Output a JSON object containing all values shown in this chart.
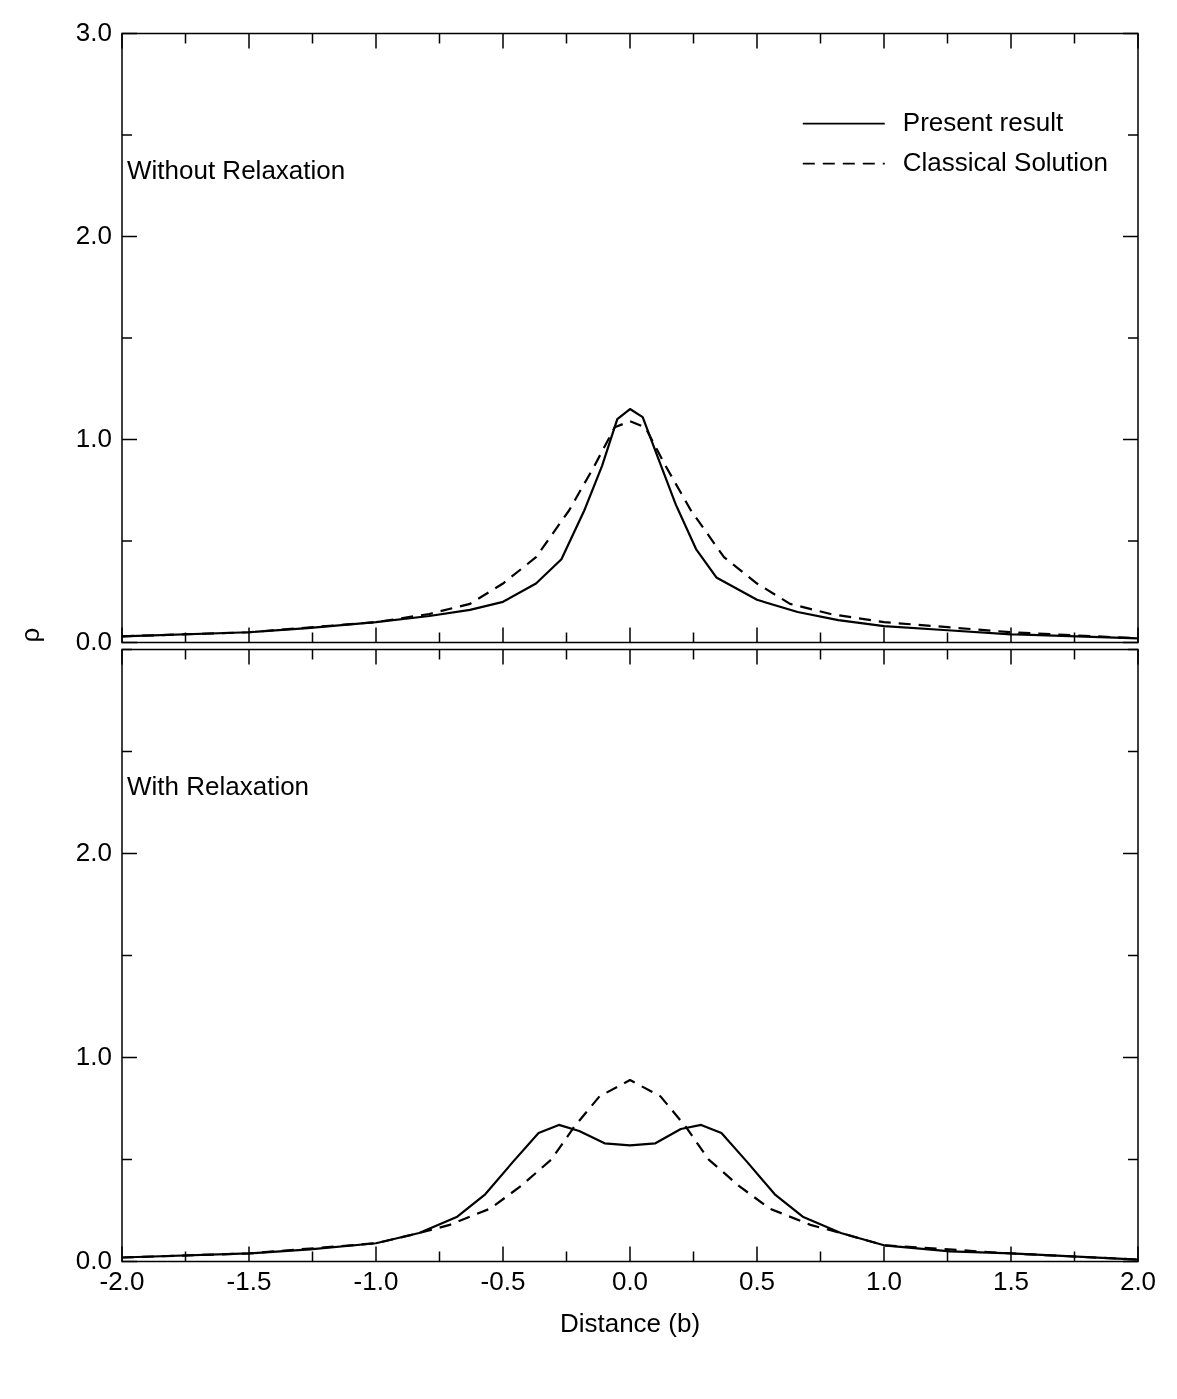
{
  "chart_data": [
    {
      "type": "line",
      "ylabel": "ρ",
      "annotations": [
        "Without Relaxation"
      ],
      "legend": "top right",
      "grid": false,
      "tick_labels": "y",
      "xlim": [
        -2,
        2
      ],
      "xticks": [
        -2,
        {
          "value": -1.75,
          "label": null
        },
        -1.5,
        {
          "value": -1.25,
          "label": null
        },
        -1,
        {
          "value": -0.75,
          "label": null
        },
        -0.5,
        {
          "value": -0.25,
          "label": null
        },
        0,
        {
          "value": 0.25,
          "label": null
        },
        0.5,
        {
          "value": 0.75,
          "label": null
        },
        1,
        {
          "value": 1.25,
          "label": null
        },
        1.5,
        {
          "value": 1.75,
          "label": null
        },
        2
      ],
      "ylim": [
        0,
        3
      ],
      "yticks": [
        {
          "value": 0,
          "label": "0.0"
        },
        {
          "value": 0.5,
          "label": null
        },
        {
          "value": 1,
          "label": "1.0"
        },
        {
          "value": 1.5,
          "label": null
        },
        {
          "value": 2,
          "label": "2.0"
        },
        {
          "value": 2.5,
          "label": null
        },
        {
          "value": 3,
          "label": "3.0"
        }
      ],
      "series": [
        {
          "name": "Present result",
          "color": "#000000",
          "line_style": "solid",
          "x": [
            -2.0,
            -1.5,
            -1.27,
            -1.0,
            -0.79,
            -0.63,
            -0.5,
            -0.37,
            -0.27,
            -0.18,
            -0.11,
            -0.05,
            0,
            0.05,
            0.11,
            0.18,
            0.26,
            0.34,
            0.5,
            0.66,
            0.82,
            1.0,
            1.25,
            1.5,
            2.0
          ],
          "values": [
            0.03,
            0.05,
            0.07,
            0.1,
            0.13,
            0.16,
            0.2,
            0.29,
            0.41,
            0.65,
            0.87,
            1.1,
            1.15,
            1.11,
            0.91,
            0.68,
            0.46,
            0.32,
            0.21,
            0.15,
            0.11,
            0.08,
            0.06,
            0.04,
            0.02
          ]
        },
        {
          "name": "Classical Solution",
          "color": "#000000",
          "line_style": "dashed",
          "x": [
            -2.0,
            -1.5,
            -1.0,
            -0.79,
            -0.63,
            -0.5,
            -0.37,
            -0.24,
            -0.14,
            -0.06,
            0,
            0.06,
            0.14,
            0.24,
            0.37,
            0.5,
            0.63,
            0.79,
            1.0,
            1.5,
            2.0
          ],
          "values": [
            0.03,
            0.05,
            0.1,
            0.14,
            0.19,
            0.29,
            0.42,
            0.65,
            0.87,
            1.06,
            1.09,
            1.06,
            0.87,
            0.65,
            0.42,
            0.29,
            0.19,
            0.14,
            0.1,
            0.05,
            0.02
          ]
        }
      ]
    },
    {
      "type": "line",
      "xlabel": "Distance (b)",
      "annotations": [
        "With Relaxation"
      ],
      "grid": false,
      "xlim": [
        -2,
        2
      ],
      "xticks": [
        {
          "value": -2,
          "label": "-2.0"
        },
        {
          "value": -1.75,
          "label": null
        },
        {
          "value": -1.5,
          "label": "-1.5"
        },
        {
          "value": -1.25,
          "label": null
        },
        {
          "value": -1,
          "label": "-1.0"
        },
        {
          "value": -0.75,
          "label": null
        },
        {
          "value": -0.5,
          "label": "-0.5"
        },
        {
          "value": -0.25,
          "label": null
        },
        {
          "value": 0,
          "label": "0.0"
        },
        {
          "value": 0.25,
          "label": null
        },
        {
          "value": 0.5,
          "label": "0.5"
        },
        {
          "value": 0.75,
          "label": null
        },
        {
          "value": 1,
          "label": "1.0"
        },
        {
          "value": 1.25,
          "label": null
        },
        {
          "value": 1.5,
          "label": "1.5"
        },
        {
          "value": 1.75,
          "label": null
        },
        {
          "value": 2,
          "label": "2.0"
        }
      ],
      "ylim": [
        0,
        3
      ],
      "yticks": [
        {
          "value": 0,
          "label": "0.0"
        },
        {
          "value": 0.5,
          "label": null
        },
        {
          "value": 1,
          "label": "1.0"
        },
        {
          "value": 1.5,
          "label": null
        },
        {
          "value": 2,
          "label": "2.0"
        },
        {
          "value": 2.5,
          "label": null
        },
        {
          "value": 3,
          "label": null
        }
      ],
      "series": [
        {
          "color": "#000000",
          "line_style": "solid",
          "x": [
            -2.0,
            -1.5,
            -1.26,
            -1.0,
            -0.83,
            -0.68,
            -0.57,
            -0.46,
            -0.36,
            -0.28,
            -0.2,
            -0.1,
            0,
            0.1,
            0.2,
            0.28,
            0.36,
            0.46,
            0.57,
            0.68,
            0.83,
            1.0,
            1.26,
            1.5,
            2.0
          ],
          "values": [
            0.02,
            0.04,
            0.06,
            0.09,
            0.14,
            0.22,
            0.33,
            0.49,
            0.63,
            0.67,
            0.64,
            0.58,
            0.57,
            0.58,
            0.65,
            0.67,
            0.63,
            0.49,
            0.33,
            0.22,
            0.14,
            0.08,
            0.05,
            0.04,
            0.01
          ]
        },
        {
          "color": "#000000",
          "line_style": "dashed",
          "x": [
            -2.0,
            -1.5,
            -1.0,
            -0.83,
            -0.71,
            -0.55,
            -0.43,
            -0.31,
            -0.22,
            -0.12,
            0,
            0.12,
            0.22,
            0.31,
            0.43,
            0.55,
            0.71,
            0.83,
            1.0,
            1.5,
            2.0
          ],
          "values": [
            0.02,
            0.04,
            0.09,
            0.14,
            0.18,
            0.26,
            0.37,
            0.5,
            0.66,
            0.81,
            0.89,
            0.81,
            0.66,
            0.5,
            0.37,
            0.26,
            0.18,
            0.14,
            0.08,
            0.04,
            0.01
          ]
        }
      ]
    }
  ]
}
